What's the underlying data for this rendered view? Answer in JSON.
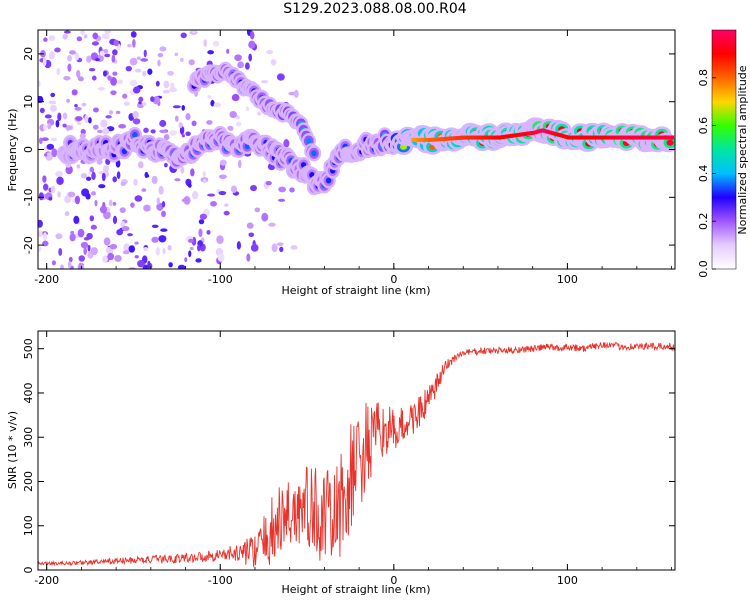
{
  "title": "S129.2023.088.08.00.R04",
  "chart_data": [
    {
      "type": "heatmap",
      "xlabel": "Height of straight line (km)",
      "ylabel": "Frequency (Hz)",
      "xlim": [
        -205,
        162
      ],
      "ylim": [
        -25,
        25
      ],
      "xticks": [
        -200,
        -100,
        0,
        100
      ],
      "yticks": [
        -20,
        -10,
        0,
        10,
        20
      ],
      "colorbar": {
        "label": "Normalized spectral amplitude",
        "range": [
          0,
          1
        ],
        "ticks": [
          0.0,
          0.2,
          0.4,
          0.6,
          0.8
        ],
        "colormap": [
          "#ffffff",
          "#e6ccff",
          "#a055ff",
          "#2200ff",
          "#00bfff",
          "#00e6a0",
          "#33ff00",
          "#ffd700",
          "#ff6400",
          "#ff0000",
          "#ff0066"
        ]
      },
      "ridge": {
        "x": [
          -190,
          -170,
          -160,
          -150,
          -140,
          -130,
          -120,
          -110,
          -100,
          -90,
          -80,
          -70,
          -60,
          -50,
          -45,
          -40,
          -36,
          -30,
          -25,
          -20,
          -15,
          -10,
          -5,
          0,
          10,
          20,
          40,
          60,
          70,
          80,
          85,
          90,
          95,
          100,
          110,
          120,
          130,
          160
        ],
        "y": [
          0,
          0,
          0,
          2,
          0,
          -1,
          -1,
          1,
          2,
          1,
          2,
          0,
          -3,
          -5,
          -7,
          -8,
          -4,
          -1,
          0,
          0,
          1,
          1,
          2,
          2,
          2,
          2,
          2.5,
          2.5,
          3,
          3.5,
          4,
          3.5,
          3,
          2.5,
          2.5,
          2.5,
          2.5,
          2.5
        ],
        "amplitude": [
          0.25,
          0.3,
          0.3,
          0.35,
          0.3,
          0.35,
          0.35,
          0.35,
          0.35,
          0.35,
          0.35,
          0.3,
          0.35,
          0.3,
          0.3,
          0.35,
          0.3,
          0.35,
          0.3,
          0.3,
          0.3,
          0.35,
          0.4,
          0.55,
          0.75,
          0.8,
          0.85,
          0.9,
          0.9,
          0.95,
          1.0,
          0.95,
          0.9,
          0.9,
          0.9,
          0.9,
          0.95,
          0.95
        ]
      },
      "upper_branch": {
        "x": [
          -115,
          -105,
          -95,
          -85,
          -75,
          -65,
          -55,
          -45
        ],
        "y": [
          14,
          16,
          16,
          13,
          10,
          8,
          6,
          -2
        ],
        "amplitude": [
          0.3,
          0.35,
          0.35,
          0.3,
          0.35,
          0.4,
          0.4,
          0.35
        ]
      }
    },
    {
      "type": "line",
      "xlabel": "Height of straight line (km)",
      "ylabel": "SNR (10 * v/v)",
      "xlim": [
        -205,
        162
      ],
      "ylim": [
        0,
        540
      ],
      "xticks": [
        -200,
        -100,
        0,
        100
      ],
      "yticks": [
        0,
        100,
        200,
        300,
        400,
        500
      ],
      "color": "#e8332c",
      "x": [
        -205,
        -190,
        -170,
        -150,
        -130,
        -110,
        -100,
        -90,
        -80,
        -75,
        -70,
        -60,
        -50,
        -40,
        -35,
        -30,
        -25,
        -20,
        -15,
        -10,
        -5,
        0,
        10,
        20,
        25,
        30,
        35,
        40,
        50,
        60,
        80,
        90,
        95,
        100,
        110,
        120,
        130,
        140,
        162
      ],
      "y": [
        15,
        15,
        18,
        22,
        25,
        30,
        35,
        38,
        45,
        60,
        90,
        130,
        140,
        120,
        110,
        150,
        200,
        250,
        280,
        300,
        320,
        310,
        340,
        380,
        420,
        460,
        480,
        490,
        495,
        495,
        500,
        505,
        500,
        505,
        500,
        510,
        505,
        505,
        505
      ],
      "noise": [
        3,
        4,
        6,
        8,
        10,
        12,
        14,
        20,
        40,
        60,
        80,
        90,
        100,
        110,
        110,
        120,
        130,
        130,
        100,
        80,
        60,
        50,
        40,
        35,
        25,
        15,
        10,
        8,
        8,
        8,
        8,
        8,
        8,
        8,
        8,
        8,
        8,
        8,
        8
      ]
    }
  ]
}
